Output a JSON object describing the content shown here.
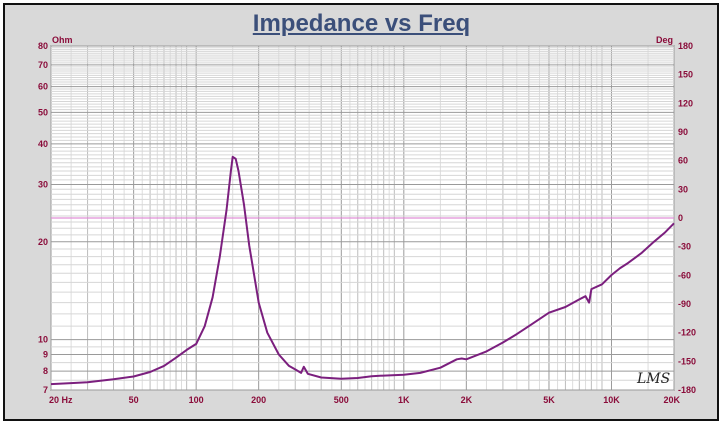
{
  "chart_data": {
    "type": "line",
    "title": "Impedance vs Freq",
    "left_axis_unit": "Ohm",
    "right_axis_unit": "Deg",
    "x_scale": "log",
    "y_scale": "log",
    "xlim": [
      20,
      20000
    ],
    "ylim": [
      7,
      80
    ],
    "y2lim": [
      -180,
      180
    ],
    "grid": true,
    "x_ticks": [
      {
        "value": 20,
        "label": "20  Hz"
      },
      {
        "value": 50,
        "label": "50"
      },
      {
        "value": 100,
        "label": "100"
      },
      {
        "value": 200,
        "label": "200"
      },
      {
        "value": 500,
        "label": "500"
      },
      {
        "value": 1000,
        "label": "1K"
      },
      {
        "value": 2000,
        "label": "2K"
      },
      {
        "value": 5000,
        "label": "5K"
      },
      {
        "value": 10000,
        "label": "10K"
      },
      {
        "value": 20000,
        "label": "20K"
      }
    ],
    "y_ticks": [
      {
        "value": 7,
        "label": "7"
      },
      {
        "value": 8,
        "label": "8"
      },
      {
        "value": 9,
        "label": "9"
      },
      {
        "value": 10,
        "label": "10"
      },
      {
        "value": 20,
        "label": "20"
      },
      {
        "value": 30,
        "label": "30"
      },
      {
        "value": 40,
        "label": "40"
      },
      {
        "value": 50,
        "label": "50"
      },
      {
        "value": 60,
        "label": "60"
      },
      {
        "value": 70,
        "label": "70"
      },
      {
        "value": 80,
        "label": "80"
      }
    ],
    "y2_ticks": [
      {
        "value": 180,
        "label": "180"
      },
      {
        "value": 150,
        "label": "150"
      },
      {
        "value": 120,
        "label": "120"
      },
      {
        "value": 90,
        "label": "90"
      },
      {
        "value": 60,
        "label": "60"
      },
      {
        "value": 30,
        "label": "30"
      },
      {
        "value": 0,
        "label": "0"
      },
      {
        "value": -30,
        "label": "-30"
      },
      {
        "value": -60,
        "label": "-60"
      },
      {
        "value": -90,
        "label": "-90"
      },
      {
        "value": -120,
        "label": "-120"
      },
      {
        "value": -150,
        "label": "-150"
      },
      {
        "value": -180,
        "label": "-180"
      }
    ],
    "series": [
      {
        "color": "#7b1f7e",
        "points": [
          [
            20,
            7.3
          ],
          [
            25,
            7.35
          ],
          [
            30,
            7.4
          ],
          [
            35,
            7.48
          ],
          [
            40,
            7.55
          ],
          [
            50,
            7.7
          ],
          [
            60,
            7.95
          ],
          [
            70,
            8.3
          ],
          [
            80,
            8.8
          ],
          [
            90,
            9.3
          ],
          [
            100,
            9.7
          ],
          [
            110,
            11.0
          ],
          [
            120,
            13.5
          ],
          [
            130,
            18.0
          ],
          [
            140,
            25.0
          ],
          [
            147,
            33.0
          ],
          [
            150,
            36.5
          ],
          [
            155,
            36.0
          ],
          [
            160,
            33.0
          ],
          [
            170,
            26.0
          ],
          [
            180,
            19.5
          ],
          [
            200,
            13.0
          ],
          [
            220,
            10.5
          ],
          [
            250,
            9.0
          ],
          [
            280,
            8.3
          ],
          [
            300,
            8.1
          ],
          [
            320,
            7.9
          ],
          [
            330,
            8.25
          ],
          [
            345,
            7.85
          ],
          [
            400,
            7.65
          ],
          [
            500,
            7.58
          ],
          [
            600,
            7.62
          ],
          [
            700,
            7.72
          ],
          [
            800,
            7.75
          ],
          [
            1000,
            7.8
          ],
          [
            1200,
            7.9
          ],
          [
            1500,
            8.2
          ],
          [
            1800,
            8.7
          ],
          [
            1900,
            8.75
          ],
          [
            2000,
            8.7
          ],
          [
            2500,
            9.2
          ],
          [
            3000,
            9.8
          ],
          [
            3500,
            10.4
          ],
          [
            4000,
            11.0
          ],
          [
            5000,
            12.1
          ],
          [
            6000,
            12.6
          ],
          [
            7000,
            13.3
          ],
          [
            7500,
            13.6
          ],
          [
            7800,
            13.0
          ],
          [
            8000,
            14.3
          ],
          [
            9000,
            14.8
          ],
          [
            10000,
            15.8
          ],
          [
            11000,
            16.6
          ],
          [
            12000,
            17.2
          ],
          [
            14000,
            18.5
          ],
          [
            16000,
            20.0
          ],
          [
            18000,
            21.3
          ],
          [
            20000,
            22.8
          ]
        ]
      }
    ],
    "reference_lines": [
      {
        "axis": "y2",
        "value": 0,
        "color": "#e08fd6"
      }
    ],
    "watermark": "LMS"
  }
}
